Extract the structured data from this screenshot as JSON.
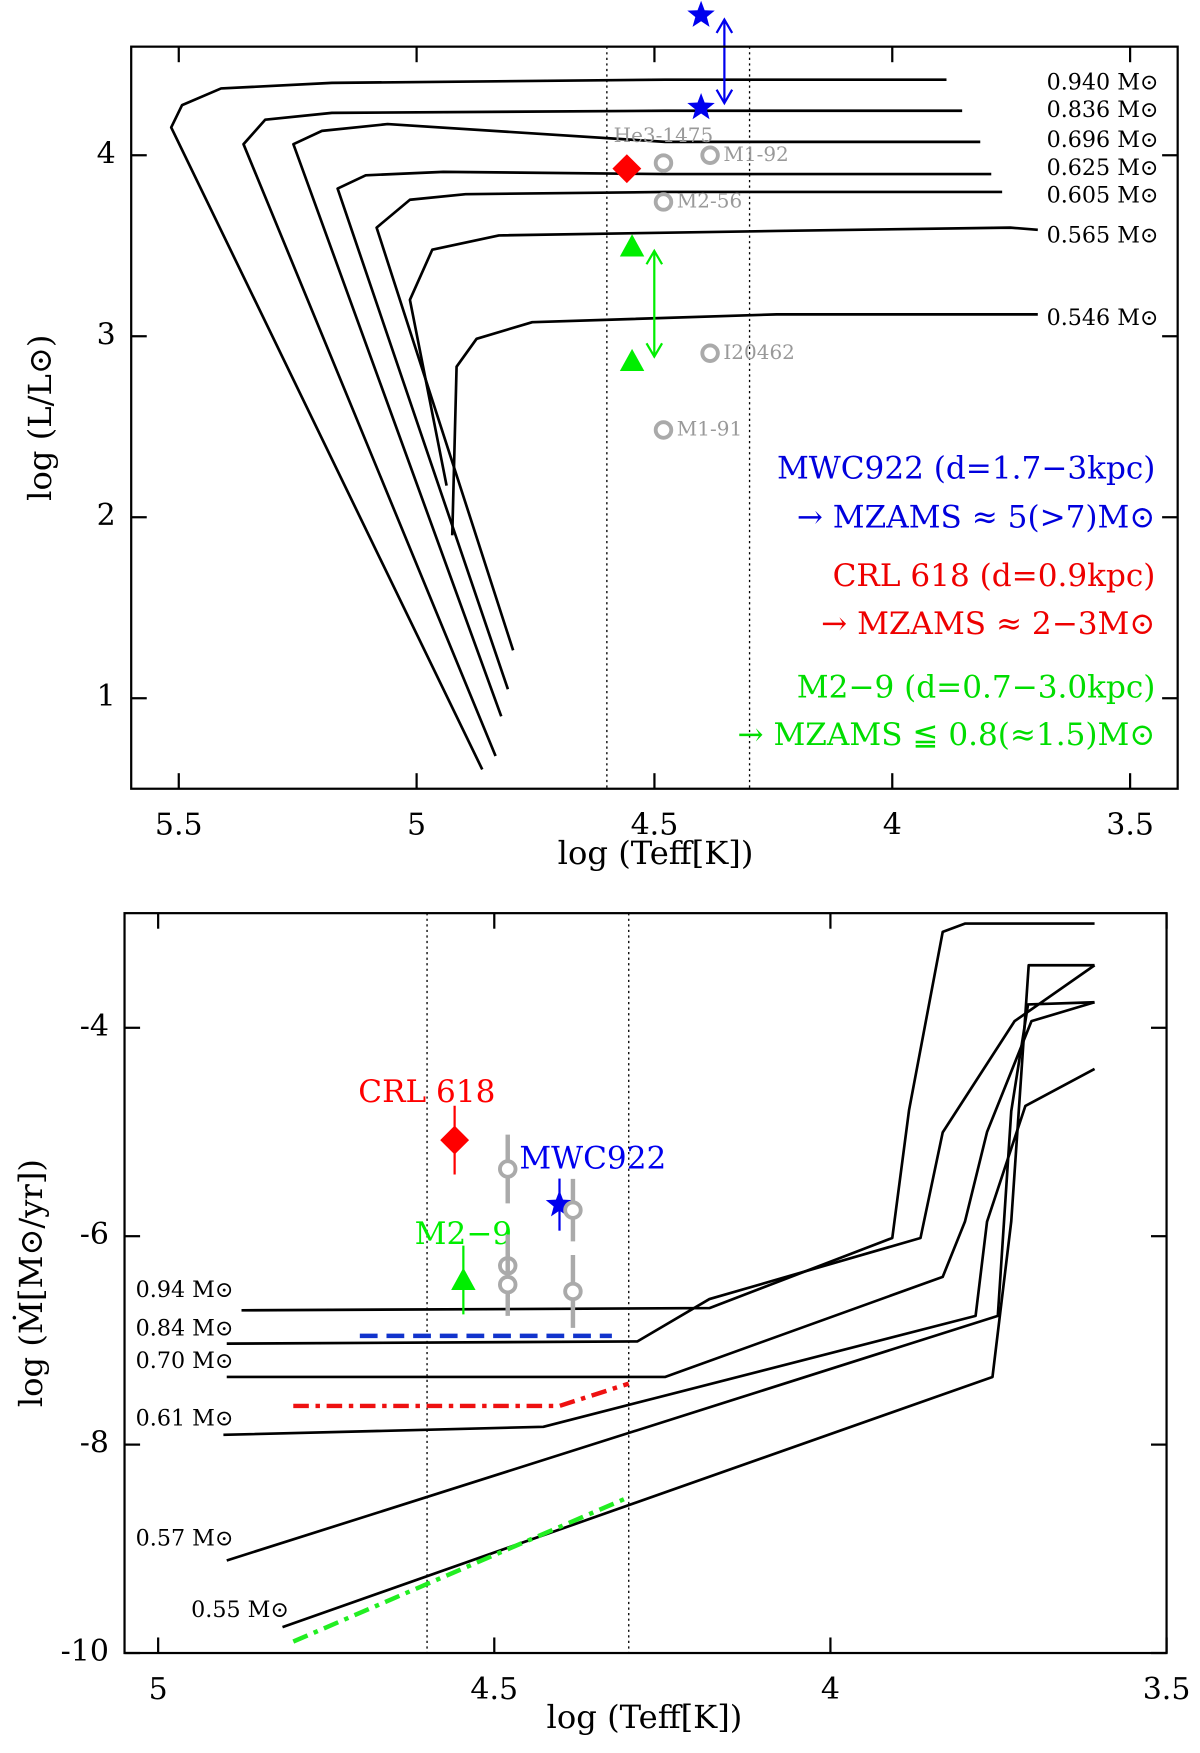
{
  "chart_data": [
    {
      "type": "line",
      "xlabel": "log (Teff[K])",
      "ylabel": "log (L/L⊙)",
      "xlim": [
        5.6,
        3.4
      ],
      "ylim": [
        0.5,
        4.6
      ],
      "xticks": [
        5.5,
        5,
        4.5,
        4,
        3.5
      ],
      "yticks": [
        1,
        2,
        3,
        4
      ],
      "vlines": [
        4.6,
        4.3
      ],
      "series": [
        {
          "name": "0.940 M⊙",
          "color": "#000000",
          "x": [
            4.862,
            5.516,
            5.493,
            5.411,
            5.178,
            4.477,
            3.886
          ],
          "values": [
            0.607,
            4.154,
            4.277,
            4.369,
            4.4,
            4.418,
            4.418
          ]
        },
        {
          "name": "0.836 M⊙",
          "color": "#000000",
          "x": [
            4.834,
            5.364,
            5.318,
            5.178,
            4.477,
            3.853
          ],
          "values": [
            0.681,
            4.061,
            4.197,
            4.234,
            4.246,
            4.246
          ]
        },
        {
          "name": "0.696 M⊙",
          "color": "#000000",
          "x": [
            4.822,
            5.259,
            5.199,
            5.061,
            4.477,
            3.815
          ],
          "values": [
            0.9,
            4.061,
            4.135,
            4.172,
            4.074,
            4.074
          ]
        },
        {
          "name": "0.625 M⊙",
          "color": "#000000",
          "x": [
            4.808,
            5.166,
            5.107,
            4.944,
            4.477,
            3.792
          ],
          "values": [
            1.05,
            3.816,
            3.889,
            3.908,
            3.896,
            3.896
          ]
        },
        {
          "name": "0.605 M⊙",
          "color": "#000000",
          "x": [
            4.797,
            5.084,
            5.014,
            4.897,
            4.477,
            3.769
          ],
          "values": [
            1.265,
            3.6,
            3.754,
            3.785,
            3.797,
            3.797
          ]
        },
        {
          "name": "0.565 M⊙",
          "color": "#000000",
          "x": [
            4.937,
            5.014,
            4.967,
            4.827,
            4.243,
            3.752,
            3.694
          ],
          "values": [
            2.175,
            3.201,
            3.478,
            3.557,
            3.582,
            3.6,
            3.588
          ]
        },
        {
          "name": "0.546 M⊙",
          "color": "#000000",
          "x": [
            4.925,
            4.916,
            4.874,
            4.757,
            4.243,
            3.694
          ],
          "values": [
            1.9,
            2.832,
            2.986,
            3.078,
            3.121,
            3.121
          ]
        }
      ],
      "markers": [
        {
          "name": "He3-1475",
          "marker": "circle",
          "color": "#aaaaaa",
          "x": 4.481,
          "y": 3.957
        },
        {
          "name": "M1-92",
          "marker": "circle",
          "color": "#aaaaaa",
          "x": 4.383,
          "y": 4.0
        },
        {
          "name": "M2-56",
          "marker": "circle",
          "color": "#aaaaaa",
          "x": 4.481,
          "y": 3.742
        },
        {
          "name": "I20462",
          "marker": "circle",
          "color": "#aaaaaa",
          "x": 4.383,
          "y": 2.906
        },
        {
          "name": "M1-91",
          "marker": "circle",
          "color": "#aaaaaa",
          "x": 4.481,
          "y": 2.482
        },
        {
          "marker": "diamond",
          "color": "#ff0000",
          "x": 4.558,
          "y": 3.926
        },
        {
          "marker": "star",
          "color": "#0000ee",
          "x": 4.402,
          "y": 4.774
        },
        {
          "marker": "star",
          "color": "#0000ee",
          "x": 4.402,
          "y": 4.264
        },
        {
          "marker": "triangle",
          "color": "#00ee00",
          "x": 4.547,
          "y": 3.496
        },
        {
          "marker": "triangle",
          "color": "#00ee00",
          "x": 4.547,
          "y": 2.863
        }
      ],
      "annotations": [
        {
          "text": "MWC922 (d=1.7−3kpc)",
          "color": "#0000dd"
        },
        {
          "text": "→ MZAMS ≈ 5(>7)M⊙",
          "color": "#0000dd"
        },
        {
          "text": "CRL 618 (d=0.9kpc)",
          "color": "#ee0000"
        },
        {
          "text": "→ MZAMS ≈ 2−3M⊙",
          "color": "#ee0000"
        },
        {
          "text": "M2−9 (d=0.7−3.0kpc)",
          "color": "#00dd00"
        },
        {
          "text": "→ MZAMS ≦ 0.8(≈1.5)M⊙",
          "color": "#00dd00"
        }
      ]
    },
    {
      "type": "line",
      "xlabel": "log (Teff[K])",
      "ylabel": "log (Ṁ[M⊙/yr])",
      "xlim": [
        5.05,
        3.5
      ],
      "ylim": [
        -10,
        -2.9
      ],
      "xticks": [
        5,
        4.5,
        4,
        3.5
      ],
      "yticks": [
        -10,
        -8,
        -6,
        -4
      ],
      "vlines": [
        4.6,
        4.3
      ],
      "series": [
        {
          "name": "0.94 M⊙",
          "color": "#000000",
          "x": [
            4.876,
            4.18,
            3.908,
            3.883,
            3.833,
            3.8,
            3.607
          ],
          "values": [
            -6.711,
            -6.69,
            -6.017,
            -4.79,
            -3.08,
            -3.0,
            -3.0
          ]
        },
        {
          "name": "0.84 M⊙",
          "color": "#000000",
          "x": [
            4.898,
            4.287,
            4.18,
            3.866,
            3.833,
            3.726,
            3.607
          ],
          "values": [
            -7.031,
            -7.01,
            -6.604,
            -6.017,
            -5.003,
            -3.936,
            -3.4
          ]
        },
        {
          "name": "0.70 M⊙",
          "color": "#000000",
          "x": [
            4.898,
            4.246,
            3.833,
            3.8,
            3.767,
            3.701,
            3.607
          ],
          "values": [
            -7.351,
            -7.351,
            -6.39,
            -5.86,
            -5.0,
            -3.936,
            -3.755
          ]
        },
        {
          "name": "0.61 M⊙",
          "color": "#000000",
          "x": [
            4.903,
            4.427,
            3.784,
            3.767,
            3.71,
            3.607
          ],
          "values": [
            -7.906,
            -7.83,
            -6.764,
            -5.86,
            -4.75,
            -4.395
          ]
        },
        {
          "name": "0.57 M⊙",
          "color": "#000000",
          "x": [
            4.898,
            3.751,
            3.731,
            3.706,
            3.607
          ],
          "values": [
            -9.112,
            -6.764,
            -4.8,
            -3.776,
            -3.755
          ]
        },
        {
          "name": "0.55 M⊙",
          "color": "#000000",
          "x": [
            4.815,
            3.759,
            3.731,
            3.705,
            3.607
          ],
          "values": [
            -9.752,
            -7.351,
            -5.857,
            -3.4,
            -3.4
          ]
        },
        {
          "color": "#1133cc",
          "dash": "dashed",
          "x": [
            4.7,
            4.325
          ],
          "values": [
            -6.956,
            -6.956
          ]
        },
        {
          "color": "#ee1111",
          "dash": "dashdot",
          "x": [
            4.799,
            4.403,
            4.3
          ],
          "values": [
            -7.629,
            -7.629,
            -7.415
          ]
        },
        {
          "color": "#22ee22",
          "dash": "dashdot",
          "x": [
            4.799,
            4.3
          ],
          "values": [
            -9.89,
            -8.504
          ]
        }
      ],
      "markers": [
        {
          "name": "CRL 618",
          "marker": "diamond",
          "color": "#ff0000",
          "x": 4.559,
          "y": -5.078,
          "yerr": 0.33
        },
        {
          "name": "MWC922",
          "marker": "star",
          "color": "#0000ee",
          "x": 4.403,
          "y": -5.697,
          "yerr": 0.25
        },
        {
          "name": "M2−9",
          "marker": "triangle",
          "color": "#00ee00",
          "x": 4.546,
          "y": -6.42,
          "yerr": 0.33
        },
        {
          "marker": "circle",
          "color": "#aaaaaa",
          "x": 4.48,
          "y": -5.355,
          "yerr": 0.33
        },
        {
          "marker": "circle",
          "color": "#aaaaaa",
          "x": 4.48,
          "y": -6.284,
          "yerr": 0.3
        },
        {
          "marker": "circle",
          "color": "#aaaaaa",
          "x": 4.48,
          "y": -6.465,
          "yerr": 0.3
        },
        {
          "marker": "circle",
          "color": "#aaaaaa",
          "x": 4.383,
          "y": -5.75,
          "yerr": 0.3
        },
        {
          "marker": "circle",
          "color": "#aaaaaa",
          "x": 4.383,
          "y": -6.53,
          "yerr": 0.35
        }
      ]
    }
  ]
}
